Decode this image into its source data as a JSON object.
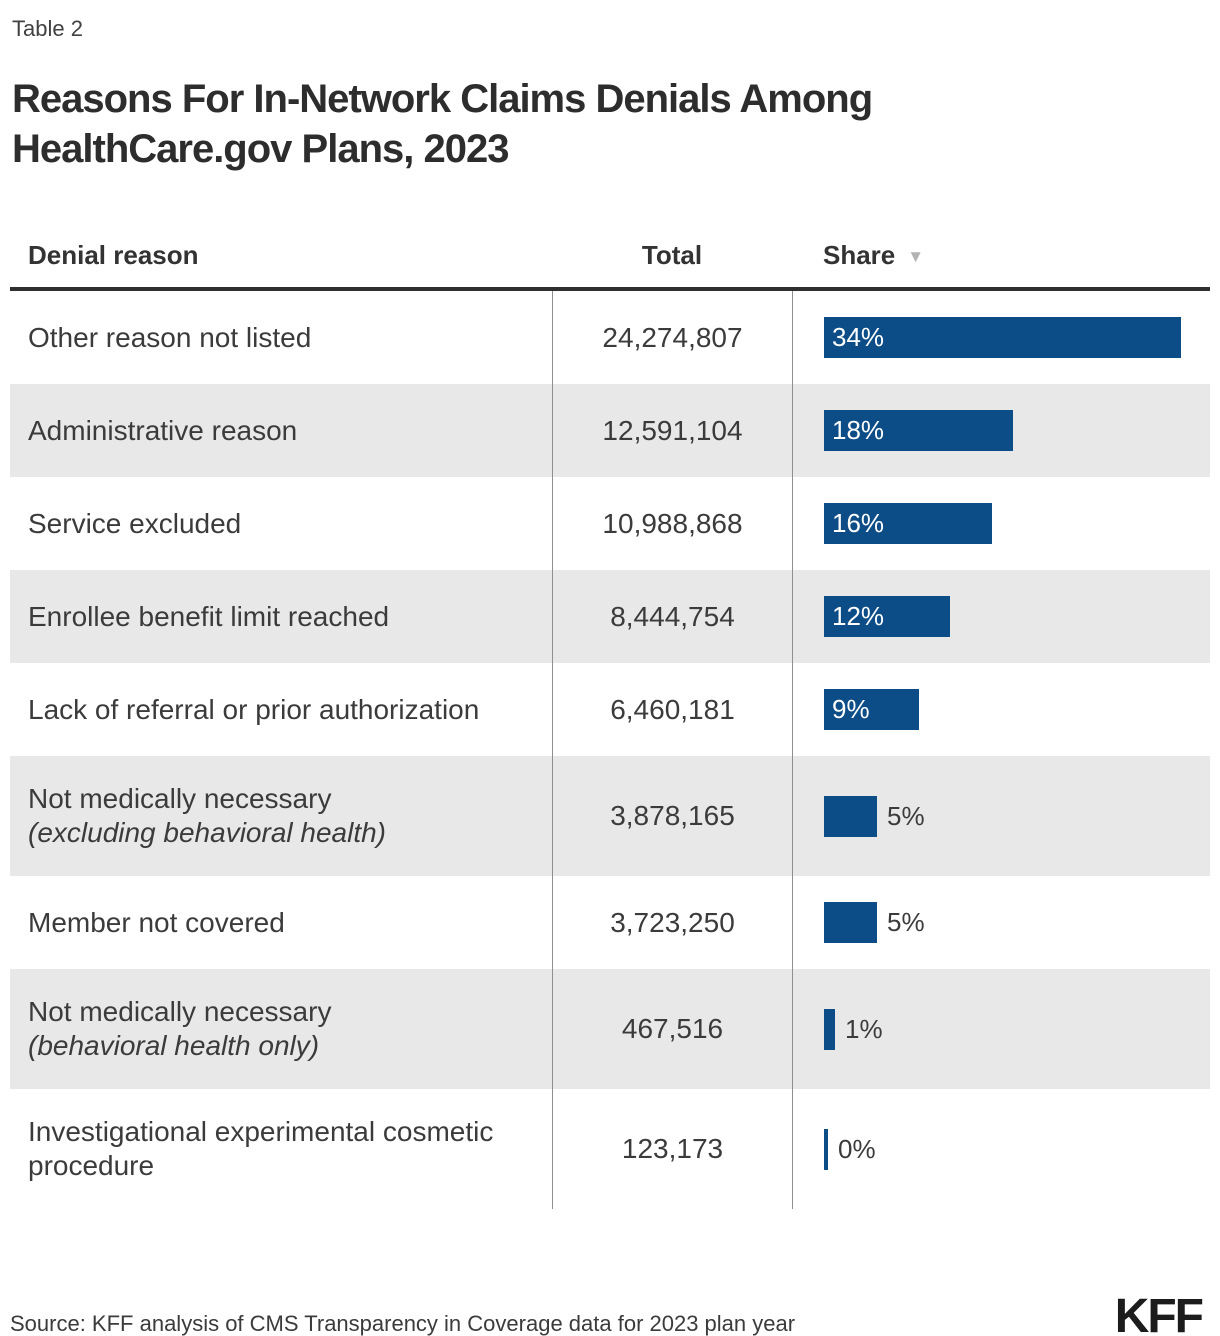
{
  "table_label": "Table 2",
  "title": "Reasons For In-Network Claims Denials Among HealthCare.gov Plans, 2023",
  "columns": {
    "reason": "Denial reason",
    "total": "Total",
    "share": "Share"
  },
  "sort_indicator": "▼",
  "rows": [
    {
      "reason": "Other reason not listed",
      "note": "",
      "total": "24,274,807",
      "share_pct": 34,
      "share_label": "34%"
    },
    {
      "reason": "Administrative reason",
      "note": "",
      "total": "12,591,104",
      "share_pct": 18,
      "share_label": "18%"
    },
    {
      "reason": "Service excluded",
      "note": "",
      "total": "10,988,868",
      "share_pct": 16,
      "share_label": "16%"
    },
    {
      "reason": "Enrollee benefit limit reached",
      "note": "",
      "total": "8,444,754",
      "share_pct": 12,
      "share_label": "12%"
    },
    {
      "reason": "Lack of referral or prior authorization",
      "note": "",
      "total": "6,460,181",
      "share_pct": 9,
      "share_label": "9%"
    },
    {
      "reason": "Not medically necessary",
      "note": "(excluding behavioral health)",
      "total": "3,878,165",
      "share_pct": 5,
      "share_label": "5%"
    },
    {
      "reason": "Member not covered",
      "note": "",
      "total": "3,723,250",
      "share_pct": 5,
      "share_label": "5%"
    },
    {
      "reason": "Not medically necessary",
      "note": "(behavioral health only)",
      "total": "467,516",
      "share_pct": 1,
      "share_label": "1%"
    },
    {
      "reason": "Investigational experimental cosmetic procedure",
      "note": "",
      "total": "123,173",
      "share_pct": 0,
      "share_label": "0%"
    }
  ],
  "source": "Source: KFF analysis of CMS Transparency in Coverage data for 2023 plan year",
  "logo": "KFF",
  "colors": {
    "bar": "#0d4d87",
    "alt_row": "#e8e8e8",
    "header_rule": "#2f2f2f",
    "divider": "#8f8f8f"
  },
  "chart_data": {
    "type": "bar",
    "orientation": "horizontal",
    "title": "Reasons For In-Network Claims Denials Among HealthCare.gov Plans, 2023",
    "categories": [
      "Other reason not listed",
      "Administrative reason",
      "Service excluded",
      "Enrollee benefit limit reached",
      "Lack of referral or prior authorization",
      "Not medically necessary (excluding behavioral health)",
      "Member not covered",
      "Not medically necessary (behavioral health only)",
      "Investigational experimental cosmetic procedure"
    ],
    "series": [
      {
        "name": "Total",
        "values": [
          24274807,
          12591104,
          10988868,
          8444754,
          6460181,
          3878165,
          3723250,
          467516,
          123173
        ]
      },
      {
        "name": "Share (%)",
        "values": [
          34,
          18,
          16,
          12,
          9,
          5,
          5,
          1,
          0
        ]
      }
    ],
    "xlabel": "",
    "ylabel": "Denial reason",
    "xlim": [
      0,
      40
    ],
    "grid": false,
    "legend": "none",
    "sort": "Share descending",
    "data_labels": true,
    "source": "Source: KFF analysis of CMS Transparency in Coverage data for 2023 plan year"
  }
}
